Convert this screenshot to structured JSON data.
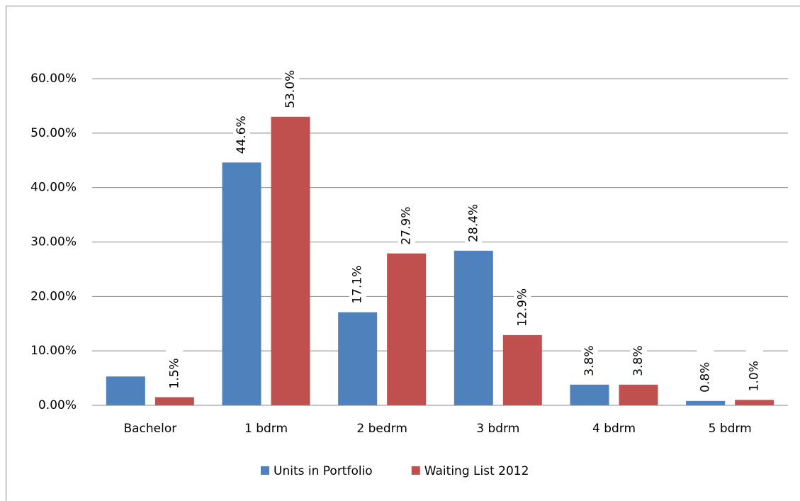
{
  "chart_data": {
    "type": "bar",
    "categories": [
      "Bachelor",
      "1 bdrm",
      "2 bedrm",
      "3 bdrm",
      "4 bdrm",
      "5 bdrm"
    ],
    "series": [
      {
        "name": "Units in Portfolio",
        "color": "#4f81bd",
        "values": [
          5.3,
          44.6,
          17.1,
          28.4,
          3.8,
          0.8
        ],
        "value_labels": [
          null,
          "44.6%",
          "17.1%",
          "28.4%",
          "3.8%",
          "0.8%"
        ]
      },
      {
        "name": "Waiting List 2012",
        "color": "#c0504d",
        "values": [
          1.5,
          53.0,
          27.9,
          12.9,
          3.8,
          1.0
        ],
        "value_labels": [
          "1.5%",
          "53.0%",
          "27.9%",
          "12.9%",
          "3.8%",
          "1.0%"
        ]
      }
    ],
    "ylim": [
      0,
      60
    ],
    "yticks": [
      {
        "value": 0,
        "label": "0.00%"
      },
      {
        "value": 10,
        "label": "10.00%"
      },
      {
        "value": 20,
        "label": "20.00%"
      },
      {
        "value": 30,
        "label": "30.00%"
      },
      {
        "value": 40,
        "label": "40.00%"
      },
      {
        "value": 50,
        "label": "50.00%"
      },
      {
        "value": 60,
        "label": "60.00%"
      }
    ],
    "grid": true,
    "legend": "bottom"
  }
}
